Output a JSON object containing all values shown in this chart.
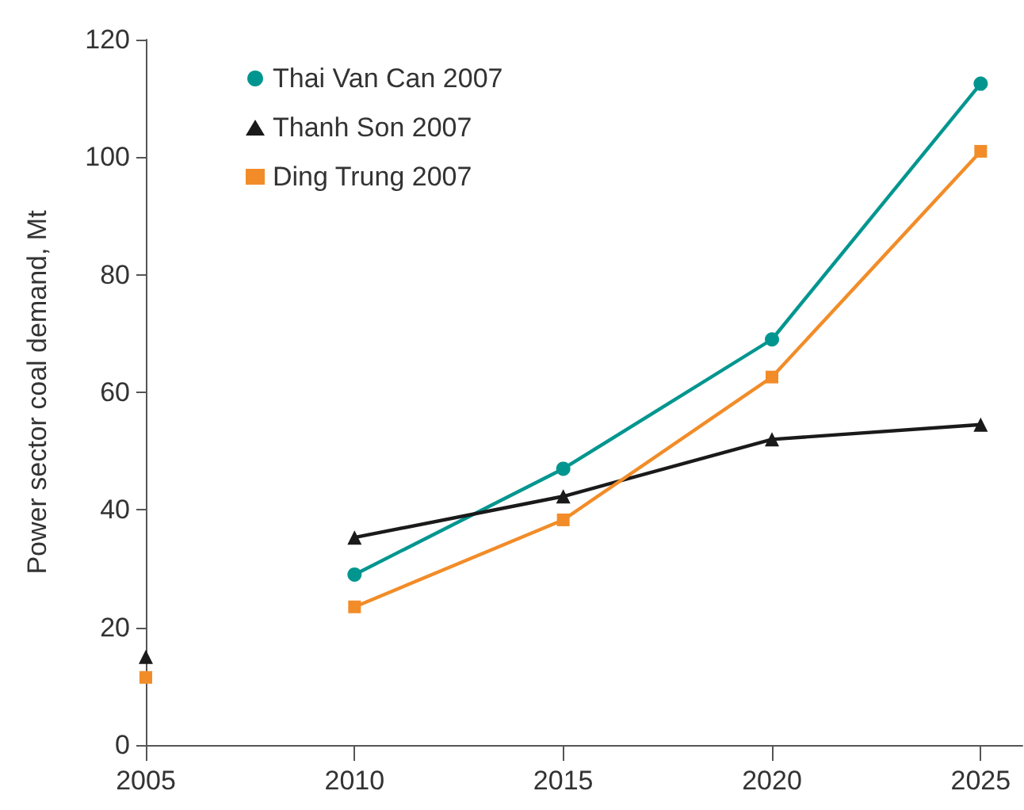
{
  "chart_data": {
    "type": "line",
    "ylabel": "Power sector coal demand, Mt",
    "x": [
      2010,
      2015,
      2020,
      2025
    ],
    "series": [
      {
        "name": "Thai Van Can 2007",
        "color": "#00968f",
        "marker": "circle",
        "values": [
          29,
          47,
          69,
          112.5
        ]
      },
      {
        "name": "Thanh Son 2007",
        "color": "#1a1a1a",
        "marker": "triangle",
        "values": [
          35.3,
          42.3,
          52,
          54.5
        ]
      },
      {
        "name": "Ding Trung 2007",
        "color": "#f28c28",
        "marker": "square",
        "values": [
          23.5,
          38.3,
          62.6,
          101
        ]
      },
      {
        "type": "scatter",
        "color": "#1a1a1a",
        "marker": "triangle",
        "x": [
          2005
        ],
        "values": [
          15
        ]
      },
      {
        "type": "scatter",
        "color": "#f28c28",
        "marker": "square",
        "x": [
          2005
        ],
        "values": [
          11.5
        ]
      }
    ],
    "xlim": [
      2005,
      2026
    ],
    "xticks": [
      2005,
      2010,
      2015,
      2020,
      2025
    ],
    "ylim": [
      0,
      120
    ],
    "yticks": [
      0,
      20,
      40,
      60,
      80,
      100,
      120
    ],
    "grid": false,
    "legend": "top left"
  }
}
